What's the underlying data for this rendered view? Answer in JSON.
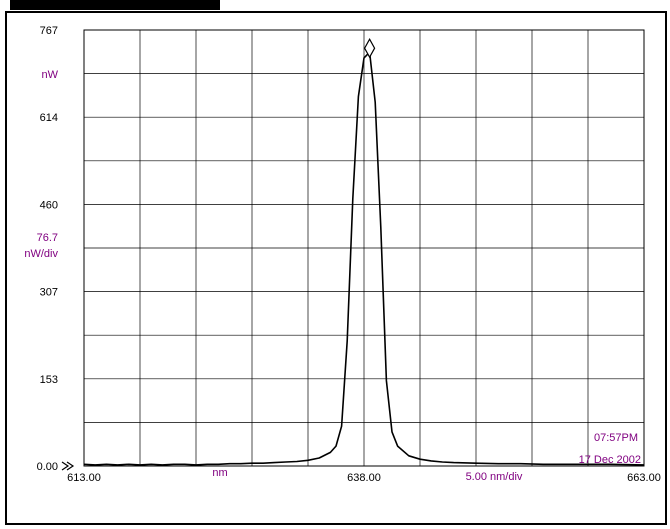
{
  "instrument": {
    "y_unit": "nW",
    "y_scale_value": "76.7",
    "y_scale_unit": "nW/div",
    "x_unit": "nm",
    "x_scale": "5.00 nm/div",
    "time": "07:57PM",
    "date": "17 Dec 2002"
  },
  "chart_data": {
    "type": "line",
    "title": "",
    "xlabel": "nm",
    "ylabel": "nW",
    "xlim": [
      613,
      663
    ],
    "ylim": [
      0,
      767
    ],
    "grid": true,
    "y_ticks": [
      {
        "value": 0,
        "label": "0.00"
      },
      {
        "value": 153.4,
        "label": "153"
      },
      {
        "value": 306.8,
        "label": "307"
      },
      {
        "value": 460.2,
        "label": "460"
      },
      {
        "value": 613.6,
        "label": "614"
      },
      {
        "value": 767,
        "label": "767"
      }
    ],
    "x_ticks": [
      {
        "value": 613,
        "label": "613.00"
      },
      {
        "value": 638,
        "label": "638.00"
      },
      {
        "value": 663,
        "label": "663.00"
      }
    ],
    "marker": {
      "x": 638.5,
      "y": 735,
      "shape": "diamond"
    },
    "reference_marker": {
      "x": 613,
      "y": 0,
      "shape": "double-chevron"
    },
    "series": [
      {
        "color": "#000000",
        "x": [
          613,
          614,
          615,
          616,
          617,
          618,
          619,
          620,
          621,
          622,
          623,
          624,
          625,
          626,
          627,
          628,
          629,
          630,
          631,
          632,
          633,
          634,
          635,
          635.5,
          636,
          636.5,
          637,
          637.5,
          638,
          638.5,
          639,
          639.5,
          640,
          640.5,
          641,
          642,
          643,
          644,
          645,
          646,
          648,
          650,
          652,
          654,
          656,
          658,
          660,
          663
        ],
        "y": [
          3,
          2,
          3,
          2,
          3,
          2,
          3,
          2,
          3,
          3,
          2,
          3,
          3,
          4,
          4,
          5,
          5,
          6,
          7,
          8,
          10,
          14,
          24,
          35,
          70,
          220,
          470,
          650,
          718,
          728,
          640,
          420,
          150,
          60,
          35,
          18,
          12,
          9,
          7,
          6,
          5,
          4,
          4,
          3,
          3,
          3,
          3,
          2
        ]
      }
    ]
  }
}
